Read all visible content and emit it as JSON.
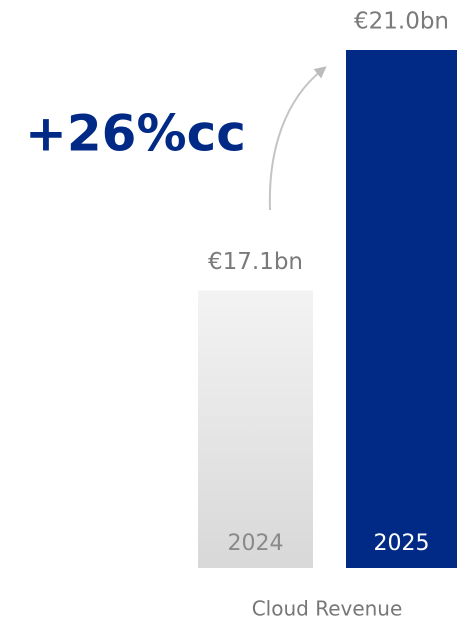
{
  "chart_data": {
    "type": "bar",
    "annotation": "+26%cc",
    "xlabel": "Cloud Revenue",
    "categories": [
      "2024",
      "2025"
    ],
    "values": [
      17.1,
      21.0
    ],
    "value_labels": [
      "€17.1bn",
      "€21.0bn"
    ],
    "colors": [
      "#e0e0e0",
      "#002a86"
    ],
    "ylim": [
      12.6,
      21.0
    ]
  }
}
